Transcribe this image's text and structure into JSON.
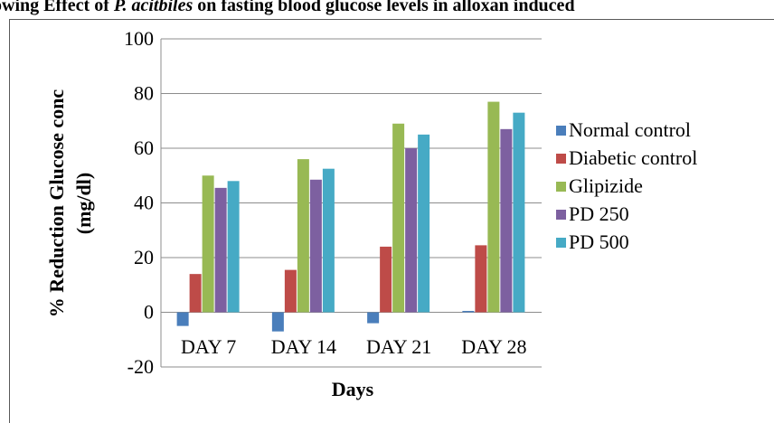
{
  "chart_data": {
    "type": "bar",
    "title_prefix": "owing Effect of ",
    "title_species": "P. acitbiles",
    "title_suffix": " on fasting blood glucose levels in alloxan induced",
    "xlabel": "Days",
    "ylabel_line1": "% Reduction Glucose conc",
    "ylabel_line2": "(mg/dl)",
    "categories": [
      "DAY 7",
      "DAY 14",
      "DAY 21",
      "DAY 28"
    ],
    "ylim": [
      -20,
      100
    ],
    "yticks": [
      "100",
      "80",
      "60",
      "40",
      "20",
      "0",
      "-20"
    ],
    "grid": true,
    "legend_position": "right",
    "series": [
      {
        "name": "Normal control",
        "color": "#4a7ebb",
        "values": [
          -5,
          -7,
          -4,
          0.5
        ]
      },
      {
        "name": "Diabetic control",
        "color": "#be4b48",
        "values": [
          14,
          15.5,
          24,
          24.5
        ]
      },
      {
        "name": "Glipizide",
        "color": "#98b954",
        "values": [
          50,
          56,
          69,
          77
        ]
      },
      {
        "name": "PD 250",
        "color": "#7d60a0",
        "values": [
          45.5,
          48.5,
          60,
          67
        ]
      },
      {
        "name": "PD 500",
        "color": "#46aac5",
        "values": [
          48,
          52.5,
          65,
          73
        ]
      }
    ]
  }
}
